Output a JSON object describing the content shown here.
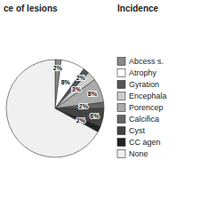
{
  "chart_data": {
    "type": "pie",
    "title": "ce of lesions",
    "subtitle": "Incidence",
    "categories": [
      "Abcess s.",
      "Atrophy",
      "Gyration",
      "Encephala",
      "Porencep",
      "Calcifica",
      "Cyst",
      "CC agen",
      "None"
    ],
    "values": [
      2,
      8,
      2,
      3,
      8,
      2,
      6,
      2,
      67
    ],
    "value_labels": [
      "2%",
      "8%",
      "2%",
      "3%",
      "8%",
      "2%",
      "6%",
      "2%",
      null
    ],
    "colors": [
      "#888888",
      "#ffffff",
      "#555555",
      "#cccccc",
      "#aaaaaa",
      "#666666",
      "#444444",
      "#222222",
      "#f0f0f0"
    ],
    "data_labels": true,
    "legend": "right"
  }
}
